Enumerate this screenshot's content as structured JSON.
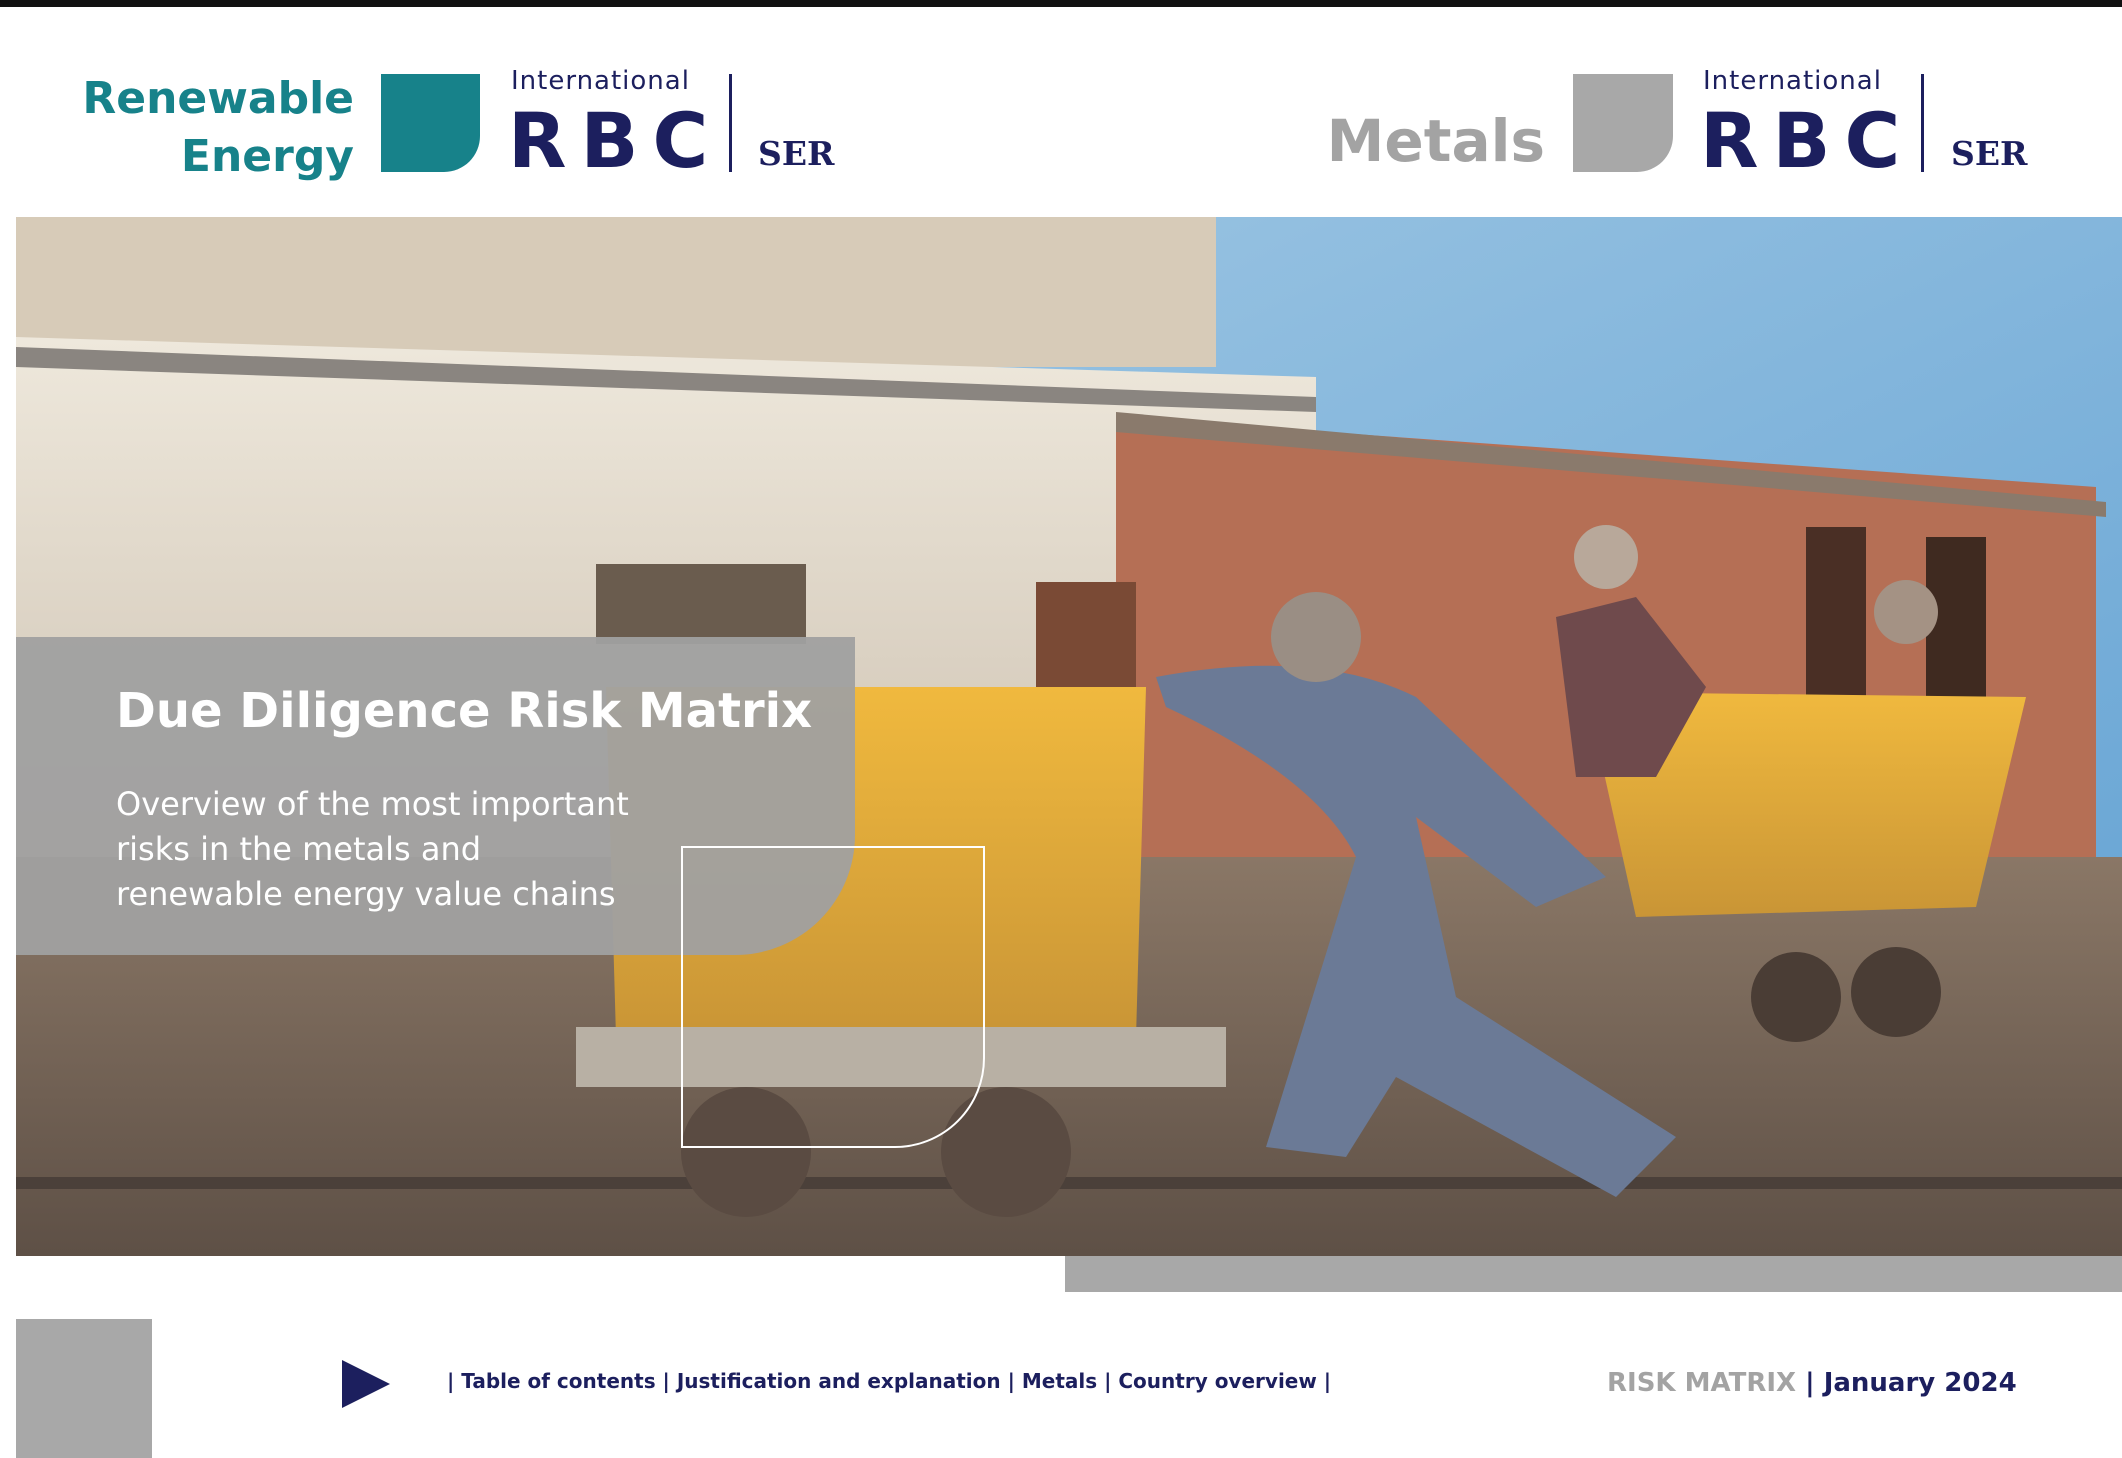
{
  "header": {
    "left_logo": {
      "line1": "Renewable",
      "line2": "Energy",
      "org_top": "International",
      "org_main": "RBC",
      "org_side": "SER"
    },
    "right_logo": {
      "line1": "Metals",
      "org_top": "International",
      "org_main": "RBC",
      "org_side": "SER"
    }
  },
  "cover": {
    "title": "Due Diligence Risk Matrix",
    "subtitle": [
      "Overview of the most important",
      "risks in the metals and",
      "renewable energy value chains"
    ]
  },
  "footer": {
    "nav": "| Table of contents | Justification and explanation | Metals | Country overview |",
    "label": "RISK MATRIX",
    "date": "| January 2024"
  }
}
